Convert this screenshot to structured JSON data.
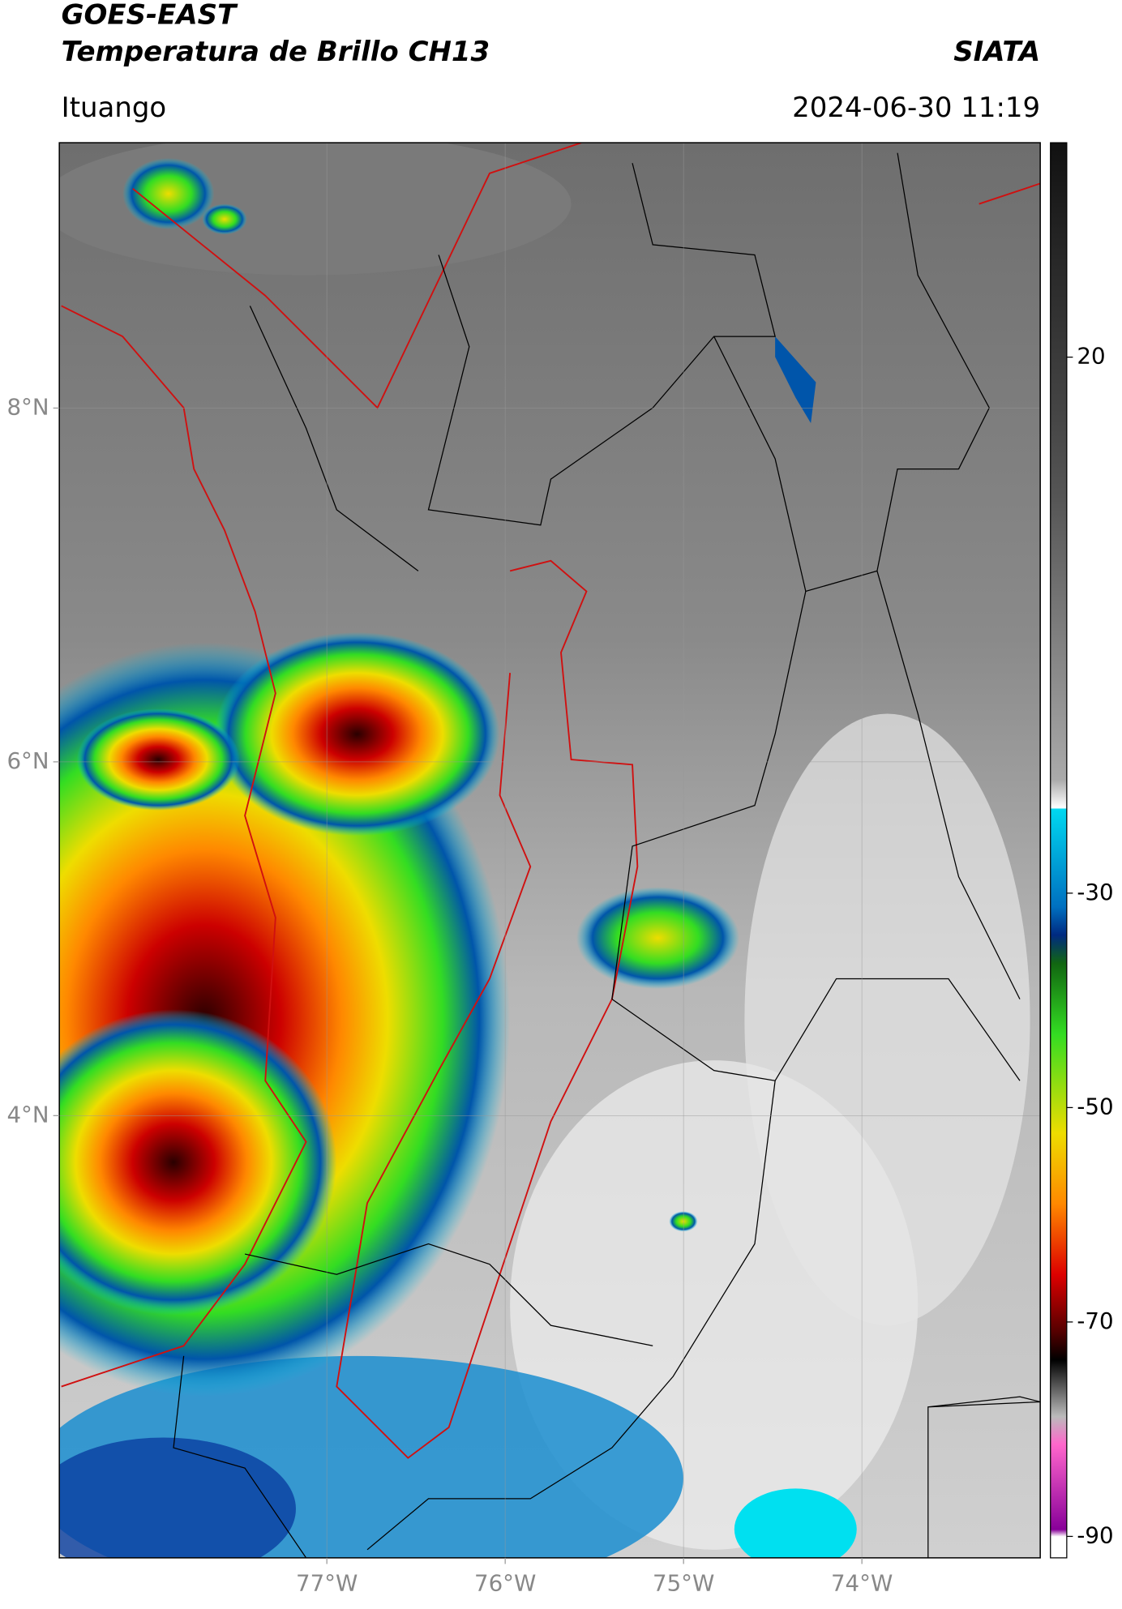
{
  "header": {
    "satellite": "GOES-EAST",
    "product": "Temperatura de Brillo CH13",
    "source": "SIATA",
    "location": "Ituango",
    "datetime": "2024-06-30 11:19"
  },
  "map": {
    "xlim": [
      -78.5,
      -73.0
    ],
    "ylim": [
      1.5,
      9.5
    ],
    "xticks": [
      {
        "value": -77,
        "label": "77°W"
      },
      {
        "value": -76,
        "label": "76°W"
      },
      {
        "value": -75,
        "label": "75°W"
      },
      {
        "value": -74,
        "label": "74°W"
      }
    ],
    "yticks": [
      {
        "value": 4,
        "label": "4°N"
      },
      {
        "value": 6,
        "label": "6°N"
      },
      {
        "value": 8,
        "label": "8°N"
      }
    ],
    "grid": true
  },
  "colorbar": {
    "lim": [
      -92,
      40
    ],
    "ticks": [
      20,
      -30,
      -50,
      -70,
      -90
    ]
  }
}
